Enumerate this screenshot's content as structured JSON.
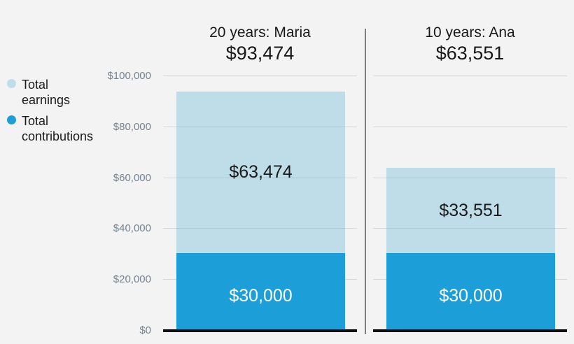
{
  "page": {
    "background": "#f2f3f2"
  },
  "legend": {
    "items": [
      {
        "id": "earnings",
        "label": "Total earnings",
        "color": "#bedde8"
      },
      {
        "id": "contributions",
        "label": "Total contributions",
        "color": "#1c9fd9"
      }
    ]
  },
  "chart_data": {
    "type": "bar",
    "stacked": true,
    "grid": true,
    "legend_position": "left",
    "ymin": 0,
    "ymax": 100000,
    "y_ticks": [
      {
        "value": 100000,
        "label": "$100,000"
      },
      {
        "value": 80000,
        "label": "$80,000"
      },
      {
        "value": 60000,
        "label": "$60,000"
      },
      {
        "value": 40000,
        "label": "$40,000"
      },
      {
        "value": 20000,
        "label": "$20,000"
      },
      {
        "value": 0,
        "label": "$0"
      }
    ],
    "groups": [
      {
        "title": "20 years: Maria",
        "total": 93474,
        "total_label": "$93,474",
        "segments": [
          {
            "name": "Total earnings",
            "value": 63474,
            "label": "$63,474",
            "color": "#bedde8",
            "label_color": "#1a1a1a"
          },
          {
            "name": "Total contributions",
            "value": 30000,
            "label": "$30,000",
            "color": "#1c9fd9",
            "label_color": "#ffffff"
          }
        ]
      },
      {
        "title": "10 years: Ana",
        "total": 63551,
        "total_label": "$63,551",
        "segments": [
          {
            "name": "Total earnings",
            "value": 33551,
            "label": "$33,551",
            "color": "#bedde8",
            "label_color": "#1a1a1a"
          },
          {
            "name": "Total contributions",
            "value": 30000,
            "label": "$30,000",
            "color": "#1c9fd9",
            "label_color": "#ffffff"
          }
        ]
      }
    ]
  }
}
